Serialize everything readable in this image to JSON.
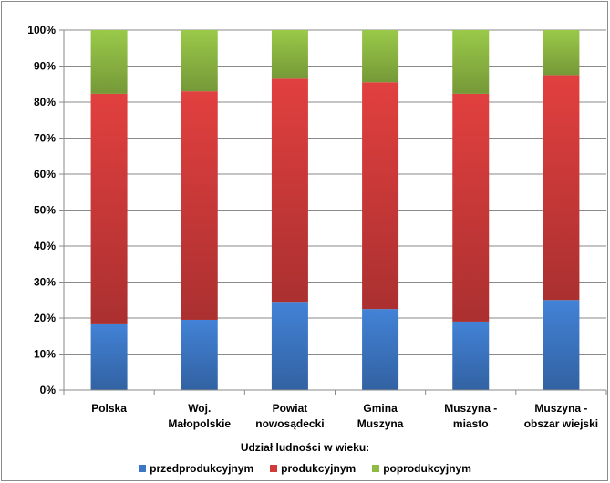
{
  "chart_data": {
    "type": "bar",
    "stacked": true,
    "categories": [
      [
        "Polska"
      ],
      [
        "Woj.",
        "Małopolskie"
      ],
      [
        "Powiat",
        "nowosądecki"
      ],
      [
        "Gmina",
        "Muszyna"
      ],
      [
        "Muszyna -",
        "miasto"
      ],
      [
        "Muszyna -",
        "obszar wiejski"
      ]
    ],
    "series": [
      {
        "name": "przedprodukcyjnym",
        "values": [
          18.5,
          19.5,
          24.5,
          22.5,
          19.0,
          25.0
        ],
        "color": "#3d78c6"
      },
      {
        "name": "produkcyjnym",
        "values": [
          63.8,
          63.5,
          62.0,
          63.0,
          63.3,
          62.5
        ],
        "color": "#d03b3a"
      },
      {
        "name": "poprodukcyjnym",
        "values": [
          17.7,
          17.0,
          13.5,
          14.5,
          17.7,
          12.5
        ],
        "color": "#8fba44"
      }
    ],
    "ylim": [
      0,
      100
    ],
    "yticks": [
      0,
      10,
      20,
      30,
      40,
      50,
      60,
      70,
      80,
      90,
      100
    ],
    "ytick_labels": [
      "0%",
      "10%",
      "20%",
      "30%",
      "40%",
      "50%",
      "60%",
      "70%",
      "80%",
      "90%",
      "100%"
    ],
    "grid": true,
    "legend_title": "Udział ludności w wieku:",
    "legend_position": "bottom"
  }
}
